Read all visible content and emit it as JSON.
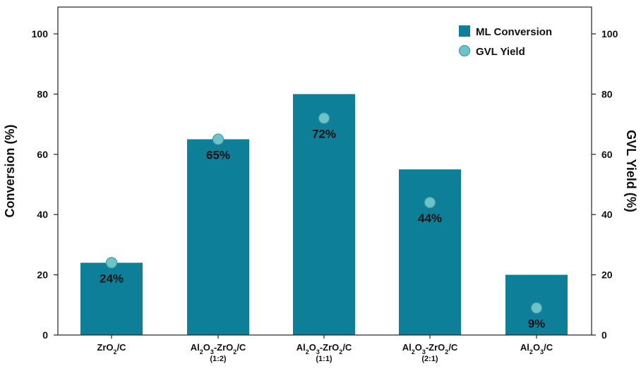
{
  "chart_data": {
    "type": "bar",
    "categories": [
      {
        "name": "ZrO<sub>2</sub>/C",
        "sub": ""
      },
      {
        "name": "Al<sub>2</sub>O<sub>3</sub>-ZrO<sub>2</sub>/C",
        "sub": "(1:2)"
      },
      {
        "name": "Al<sub>2</sub>O<sub>3</sub>-ZrO<sub>2</sub>/C",
        "sub": "(1:1)"
      },
      {
        "name": "Al<sub>2</sub>O<sub>3</sub>-ZrO<sub>2</sub>/C",
        "sub": "(2:1)"
      },
      {
        "name": "Al<sub>2</sub>O<sub>3</sub>/C",
        "sub": ""
      }
    ],
    "series": [
      {
        "name": "ML Conversion",
        "kind": "bar",
        "axis": "left",
        "color": "#0e7f99",
        "values": [
          24,
          65,
          80,
          55,
          20
        ]
      },
      {
        "name": "GVL Yield",
        "kind": "scatter",
        "axis": "right",
        "color": "#6cc4c9",
        "values": [
          24,
          65,
          72,
          44,
          9
        ]
      }
    ],
    "data_labels": [
      "24%",
      "65%",
      "72%",
      "44%",
      "9%"
    ],
    "ylabel_left": "Conversion (%)",
    "ylabel_right": "GVL Yield (%)",
    "ylim": [
      0,
      100
    ],
    "yticks": [
      0,
      20,
      40,
      60,
      80,
      100
    ],
    "legend_position": "top-right",
    "grid": false
  }
}
